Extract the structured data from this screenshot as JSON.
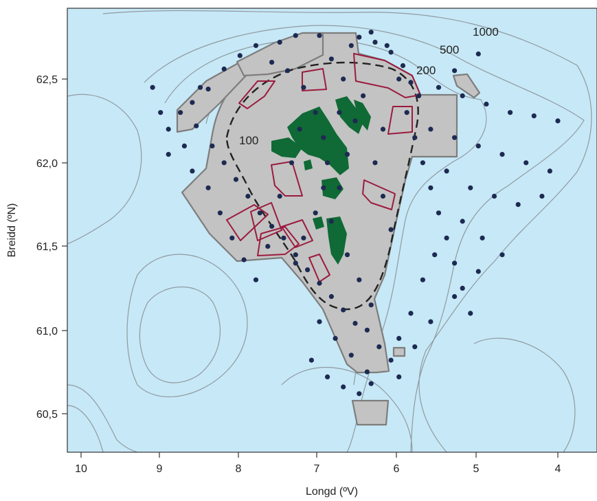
{
  "map": {
    "xlabel": "Longd (ºV)",
    "ylabel": "Breidd (ºN)",
    "x_ticks": [
      "10",
      "9",
      "8",
      "7",
      "6",
      "5",
      "4"
    ],
    "y_ticks": [
      "62,5",
      "62,0",
      "61,5",
      "61,0",
      "60,5"
    ],
    "contour_labels": [
      "1000",
      "500",
      "200",
      "100"
    ],
    "colors": {
      "sea": "#c7e8f6",
      "shelf_zone": "#c3c3c3",
      "zone_border": "#7d7d7d",
      "boxes": "#9b1b3e",
      "islands": "#0f6a35",
      "stations": "#1d2a52",
      "contours": "#8e9aa2"
    },
    "stations": [
      [
        6.6,
        62.7
      ],
      [
        6.3,
        62.72
      ],
      [
        6.1,
        62.66
      ],
      [
        5.95,
        62.58
      ],
      [
        5.85,
        62.48
      ],
      [
        5.75,
        62.4
      ],
      [
        6.5,
        62.75
      ],
      [
        6.35,
        62.78
      ],
      [
        6.15,
        62.7
      ],
      [
        7.0,
        62.76
      ],
      [
        7.3,
        62.76
      ],
      [
        7.5,
        62.72
      ],
      [
        7.8,
        62.7
      ],
      [
        8.0,
        62.64
      ],
      [
        8.2,
        62.56
      ],
      [
        8.4,
        62.44
      ],
      [
        8.6,
        62.36
      ],
      [
        8.9,
        62.2
      ],
      [
        8.75,
        62.3
      ],
      [
        8.55,
        62.22
      ],
      [
        8.35,
        62.1
      ],
      [
        8.2,
        62.0
      ],
      [
        8.05,
        61.9
      ],
      [
        7.9,
        61.8
      ],
      [
        7.75,
        61.7
      ],
      [
        7.6,
        61.62
      ],
      [
        7.45,
        61.55
      ],
      [
        7.3,
        61.45
      ],
      [
        7.15,
        61.36
      ],
      [
        7.0,
        61.28
      ],
      [
        6.85,
        61.2
      ],
      [
        6.7,
        61.12
      ],
      [
        6.55,
        61.04
      ],
      [
        6.4,
        61.0
      ],
      [
        6.25,
        60.9
      ],
      [
        6.1,
        60.82
      ],
      [
        6.0,
        60.72
      ],
      [
        6.35,
        60.68
      ],
      [
        6.5,
        60.62
      ],
      [
        6.7,
        60.66
      ],
      [
        6.9,
        60.72
      ],
      [
        7.1,
        60.82
      ],
      [
        7.3,
        61.4
      ],
      [
        7.2,
        61.55
      ],
      [
        7.05,
        61.7
      ],
      [
        6.95,
        61.85
      ],
      [
        6.9,
        62.0
      ],
      [
        6.95,
        62.15
      ],
      [
        7.05,
        62.3
      ],
      [
        7.2,
        62.45
      ],
      [
        7.4,
        62.55
      ],
      [
        7.6,
        62.6
      ],
      [
        6.0,
        62.5
      ],
      [
        5.9,
        62.3
      ],
      [
        5.8,
        62.15
      ],
      [
        5.7,
        62.0
      ],
      [
        5.6,
        61.85
      ],
      [
        5.5,
        61.7
      ],
      [
        5.4,
        61.55
      ],
      [
        5.3,
        61.4
      ],
      [
        5.2,
        61.25
      ],
      [
        5.1,
        61.1
      ],
      [
        5.55,
        61.45
      ],
      [
        5.7,
        61.3
      ],
      [
        5.85,
        61.1
      ],
      [
        6.0,
        60.95
      ],
      [
        5.5,
        62.45
      ],
      [
        5.2,
        62.4
      ],
      [
        4.9,
        62.35
      ],
      [
        4.6,
        62.3
      ],
      [
        4.3,
        62.28
      ],
      [
        4.0,
        62.25
      ],
      [
        5.6,
        62.2
      ],
      [
        5.3,
        62.15
      ],
      [
        5.0,
        62.1
      ],
      [
        4.7,
        62.05
      ],
      [
        4.4,
        62.0
      ],
      [
        4.1,
        61.95
      ],
      [
        5.4,
        61.95
      ],
      [
        5.1,
        61.85
      ],
      [
        4.8,
        61.8
      ],
      [
        4.5,
        61.75
      ],
      [
        5.2,
        61.65
      ],
      [
        4.95,
        61.55
      ],
      [
        4.7,
        61.45
      ],
      [
        5.0,
        61.35
      ],
      [
        5.3,
        61.2
      ],
      [
        5.6,
        61.05
      ],
      [
        5.8,
        60.9
      ],
      [
        6.1,
        61.6
      ],
      [
        6.2,
        61.8
      ],
      [
        6.3,
        62.0
      ],
      [
        6.2,
        62.2
      ],
      [
        6.45,
        62.4
      ],
      [
        6.7,
        62.5
      ],
      [
        6.85,
        62.62
      ],
      [
        8.5,
        62.45
      ],
      [
        8.7,
        62.1
      ],
      [
        8.6,
        61.95
      ],
      [
        8.4,
        61.85
      ],
      [
        8.25,
        61.7
      ],
      [
        8.1,
        61.55
      ],
      [
        7.95,
        61.42
      ],
      [
        7.8,
        61.3
      ],
      [
        7.65,
        61.5
      ],
      [
        7.5,
        61.8
      ],
      [
        7.35,
        62.0
      ],
      [
        7.25,
        62.2
      ],
      [
        6.75,
        62.3
      ],
      [
        6.55,
        62.25
      ],
      [
        6.65,
        62.05
      ],
      [
        6.75,
        61.85
      ],
      [
        6.85,
        61.65
      ],
      [
        6.65,
        61.45
      ],
      [
        6.5,
        61.3
      ],
      [
        6.35,
        61.15
      ],
      [
        9.1,
        62.45
      ],
      [
        9.0,
        62.3
      ],
      [
        8.9,
        62.05
      ],
      [
        6.4,
        60.75
      ],
      [
        6.6,
        60.85
      ],
      [
        6.8,
        60.95
      ],
      [
        7.0,
        61.05
      ],
      [
        5.0,
        62.65
      ],
      [
        5.3,
        62.55
      ],
      [
        4.2,
        61.8
      ]
    ],
    "series": [
      {
        "level": 100
      },
      {
        "level": 200
      },
      {
        "level": 500
      },
      {
        "level": 1000
      }
    ]
  }
}
